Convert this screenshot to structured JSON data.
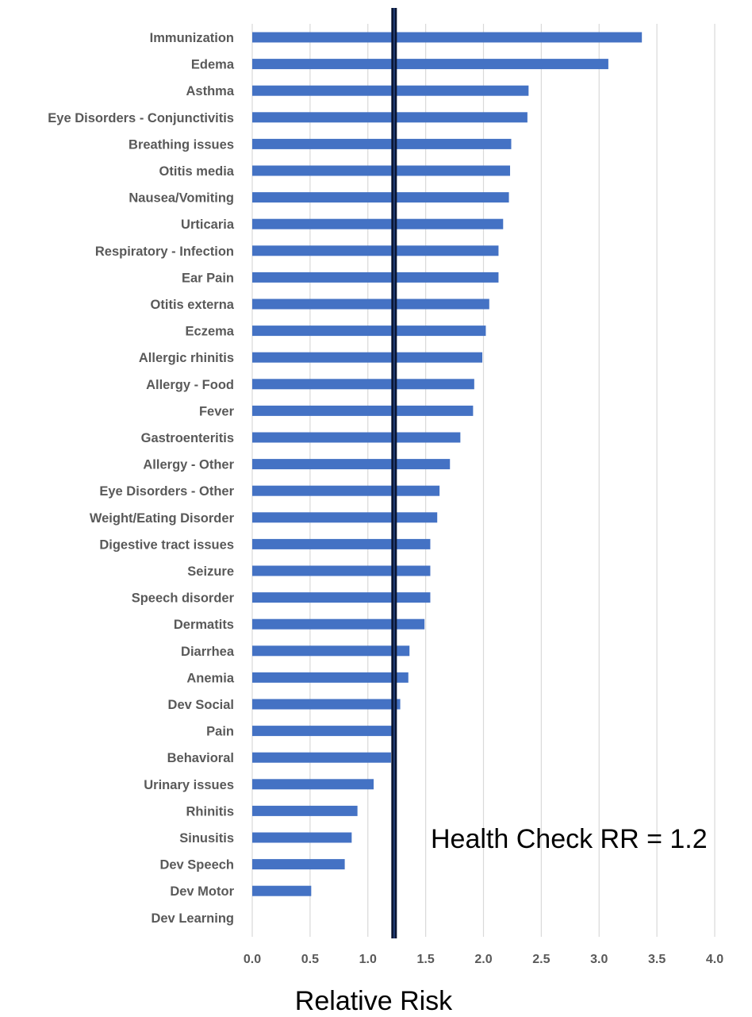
{
  "chart_data": {
    "type": "bar",
    "orientation": "horizontal",
    "categories": [
      "Immunization",
      "Edema",
      "Asthma",
      "Eye Disorders - Conjunctivitis",
      "Breathing issues",
      "Otitis media",
      "Nausea/Vomiting",
      "Urticaria",
      "Respiratory - Infection",
      "Ear Pain",
      "Otitis externa",
      "Eczema",
      "Allergic rhinitis",
      "Allergy - Food",
      "Fever",
      "Gastroenteritis",
      "Allergy - Other",
      "Eye Disorders - Other",
      "Weight/Eating Disorder",
      "Digestive tract issues",
      "Seizure",
      "Speech disorder",
      "Dermatits",
      "Diarrhea",
      "Anemia",
      "Dev Social",
      "Pain",
      "Behavioral",
      "Urinary issues",
      "Rhinitis",
      "Sinusitis",
      "Dev Speech",
      "Dev Motor",
      "Dev Learning"
    ],
    "values": [
      3.37,
      3.08,
      2.39,
      2.38,
      2.24,
      2.23,
      2.22,
      2.17,
      2.13,
      2.13,
      2.05,
      2.02,
      1.99,
      1.92,
      1.91,
      1.8,
      1.71,
      1.62,
      1.6,
      1.54,
      1.54,
      1.54,
      1.49,
      1.36,
      1.35,
      1.28,
      1.22,
      1.2,
      1.05,
      0.91,
      0.86,
      0.8,
      0.51,
      0.0
    ],
    "xlabel": "Relative Risk",
    "ylabel": "",
    "title": "",
    "xlim": [
      0,
      4.0
    ],
    "xticks": [
      "0.0",
      "0.5",
      "1.0",
      "1.5",
      "2.0",
      "2.5",
      "3.0",
      "3.5",
      "4.0"
    ],
    "reference_line": {
      "value": 1.22,
      "label": "Health Check RR = 1.2"
    },
    "grid": "vertical",
    "bar_color": "#4472c4",
    "reference_line_color": "#0a1633",
    "grid_color": "#d9d9d9",
    "legend": "none"
  }
}
